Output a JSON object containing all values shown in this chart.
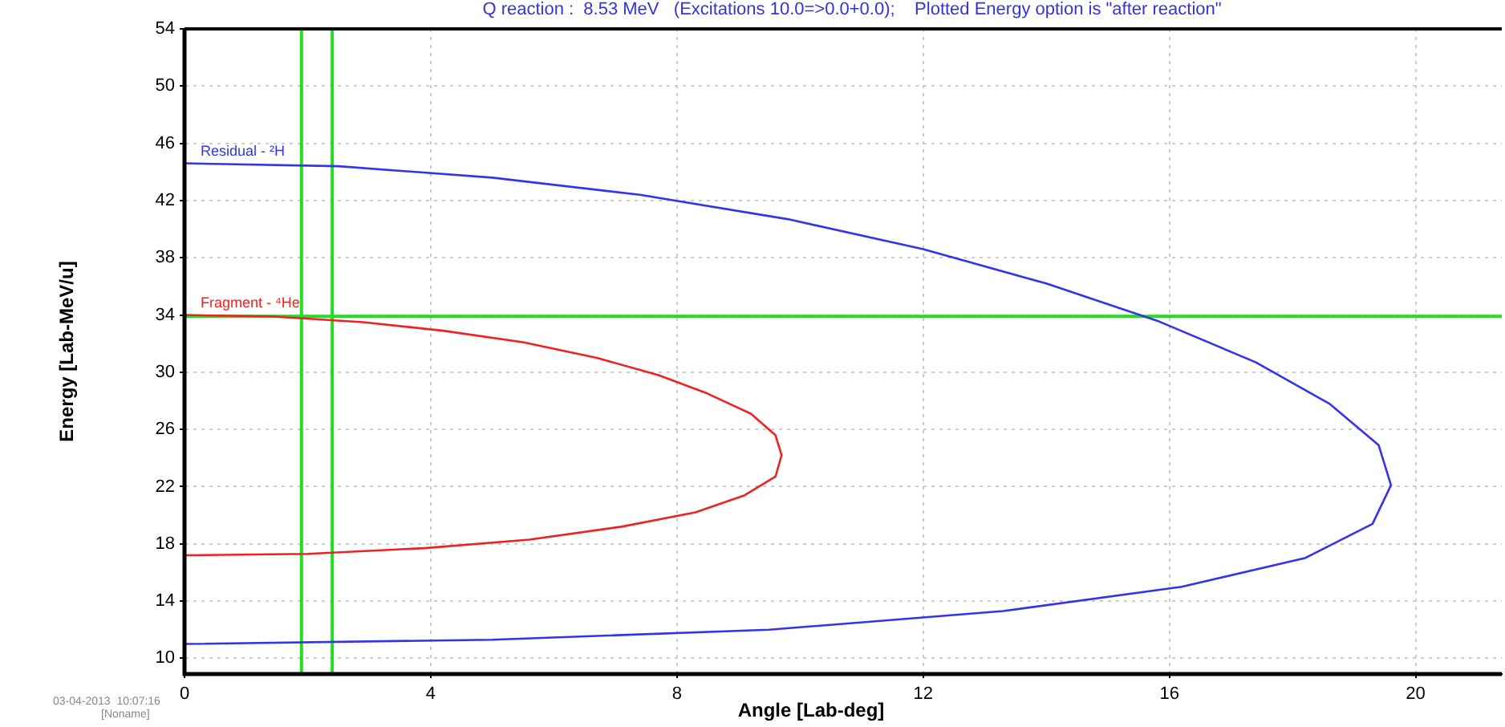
{
  "chart_data": {
    "type": "line",
    "title": "Q reaction :  8.53 MeV   (Excitations 10.0=>0.0+0.0);    Plotted Energy option is \"after reaction\"",
    "xlabel": "Angle [Lab-deg]",
    "ylabel": "Energy [Lab-MeV/u]",
    "xlim": [
      0,
      21.4
    ],
    "ylim": [
      8.9,
      54
    ],
    "xticks": [
      0,
      4,
      8,
      12,
      16,
      20
    ],
    "yticks": [
      10,
      14,
      18,
      22,
      26,
      30,
      34,
      38,
      42,
      46,
      50,
      54
    ],
    "grid": true,
    "legend": false,
    "marker": "none",
    "line_style": "solid",
    "series": [
      {
        "name": "Residual - ²H",
        "color": "#3333ee",
        "x": [
          0,
          2.5,
          5.0,
          7.4,
          9.8,
          12.0,
          14.0,
          15.8,
          17.4,
          18.6,
          19.4,
          19.6,
          19.3,
          18.2,
          16.2,
          13.3,
          9.5,
          5.0,
          0
        ],
        "values": [
          44.6,
          44.4,
          43.6,
          42.4,
          40.7,
          38.6,
          36.2,
          33.6,
          30.7,
          27.8,
          24.9,
          22.1,
          19.4,
          17.0,
          15.0,
          13.3,
          12.0,
          11.3,
          11.0
        ]
      },
      {
        "name": "Fragment - ⁴He",
        "color": "#ee2222",
        "x": [
          0,
          1.4,
          2.9,
          4.2,
          5.5,
          6.7,
          7.7,
          8.5,
          9.2,
          9.6,
          9.7,
          9.6,
          9.1,
          8.3,
          7.1,
          5.6,
          3.9,
          2.0,
          0
        ],
        "values": [
          34.0,
          33.9,
          33.5,
          32.9,
          32.1,
          31.0,
          29.8,
          28.5,
          27.1,
          25.6,
          24.2,
          22.7,
          21.4,
          20.2,
          19.2,
          18.3,
          17.7,
          17.3,
          17.2
        ]
      }
    ],
    "ref_lines": [
      {
        "axis": "x",
        "value": 1.9,
        "color": "#22dd22"
      },
      {
        "axis": "x",
        "value": 2.4,
        "color": "#22dd22"
      },
      {
        "axis": "y",
        "value": 33.9,
        "color": "#22dd22"
      }
    ],
    "annotations": [
      "03-04-2013  10:07:16",
      "[Noname]"
    ]
  }
}
